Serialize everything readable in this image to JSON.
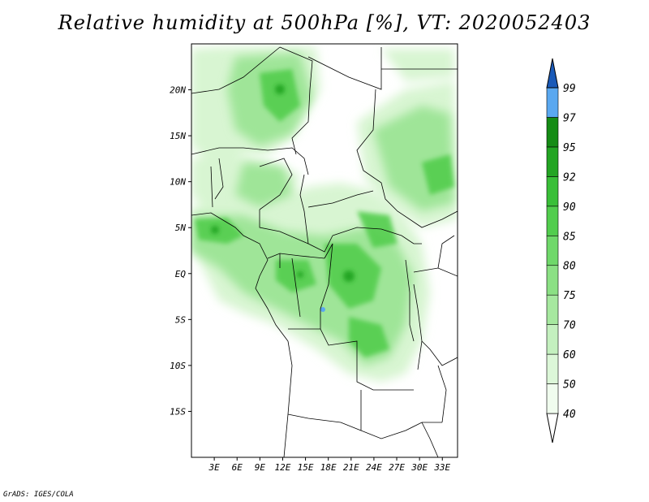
{
  "title": "Relative humidity at 500hPa [%], VT: 2020052403",
  "credit": "GrADS: IGES/COLA",
  "map": {
    "lon_range": [
      0,
      35
    ],
    "lat_range": [
      -20,
      25
    ],
    "lat_ticks": [
      {
        "value": 20,
        "label": "20N"
      },
      {
        "value": 15,
        "label": "15N"
      },
      {
        "value": 10,
        "label": "10N"
      },
      {
        "value": 5,
        "label": "5N"
      },
      {
        "value": 0,
        "label": "EQ"
      },
      {
        "value": -5,
        "label": "5S"
      },
      {
        "value": -10,
        "label": "10S"
      },
      {
        "value": -15,
        "label": "15S"
      }
    ],
    "lon_ticks": [
      {
        "value": 3,
        "label": "3E"
      },
      {
        "value": 6,
        "label": "6E"
      },
      {
        "value": 9,
        "label": "9E"
      },
      {
        "value": 12,
        "label": "12E"
      },
      {
        "value": 15,
        "label": "15E"
      },
      {
        "value": 18,
        "label": "18E"
      },
      {
        "value": 21,
        "label": "21E"
      },
      {
        "value": 24,
        "label": "24E"
      },
      {
        "value": 27,
        "label": "27E"
      },
      {
        "value": 30,
        "label": "30E"
      },
      {
        "value": 33,
        "label": "33E"
      }
    ]
  },
  "colorbar": {
    "levels": [
      "40",
      "50",
      "60",
      "70",
      "75",
      "80",
      "85",
      "90",
      "92",
      "95",
      "97",
      "99"
    ],
    "colors": [
      "#f0fcee",
      "#dcf7d8",
      "#c4f0bf",
      "#a6e89f",
      "#8be084",
      "#6fd86a",
      "#52cd4e",
      "#39bf38",
      "#23a523",
      "#158c15",
      "#5aa8f0",
      "#2a78d8",
      "#1a5ab8"
    ],
    "bottom_color": "#ffffff"
  }
}
